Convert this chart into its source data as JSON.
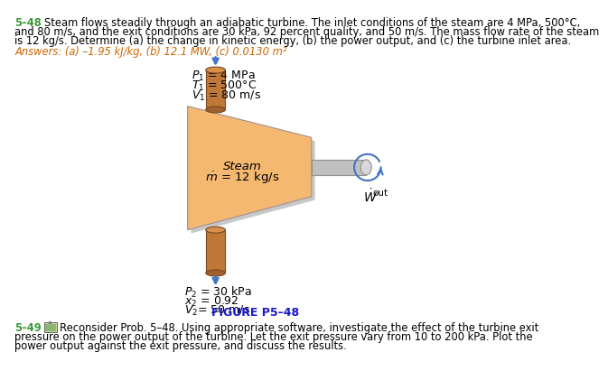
{
  "bg_color": "#ffffff",
  "problem_number": "5–48",
  "problem_line1": "Steam flows steadily through an adiabatic turbine. The inlet conditions of the steam are 4 MPa, 500°C,",
  "problem_line2": "and 80 m/s, and the exit conditions are 30 kPa, 92 percent quality, and 50 m/s. The mass flow rate of the steam",
  "problem_line3": "is 12 kg/s. Determine (a) the change in kinetic energy, (b) the power output, and (c) the turbine inlet area.",
  "answers_text": "Answers: (a) –1.95 kJ/kg, (b) 12.1 MW, (c) 0.0130 m²",
  "figure_label": "FIGURE P5–48",
  "next_problem_number": "5–49",
  "next_line1": "Reconsider Prob. 5–48. Using appropriate software, investigate the effect of the turbine exit",
  "next_line2": "pressure on the power output of the turbine. Let the exit pressure vary from 10 to 200 kPa. Plot the",
  "next_line3": "power output against the exit pressure, and discuss the results.",
  "turbine_fill_color": "#f5b870",
  "pipe_fill_color": "#c07838",
  "pipe_top_color": "#d8904a",
  "pipe_shadow_color": "#a06030",
  "shaft_color": "#c0c0c0",
  "shaft_edge_color": "#909090",
  "shadow_color": "#c8c8c8",
  "arrow_color": "#4472c4",
  "green_color": "#3a9a3a",
  "answer_color": "#cc6600",
  "figure_color": "#1a1acc",
  "turb_edge_color": "#a09090",
  "text_fontsize": 8.3,
  "label_fontsize": 9.0
}
